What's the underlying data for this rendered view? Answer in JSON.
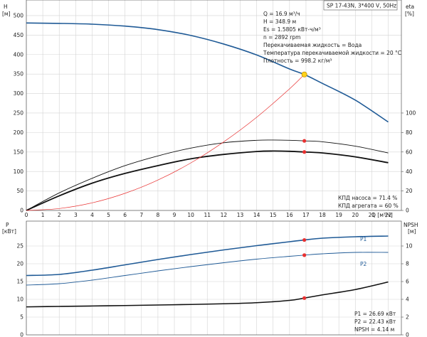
{
  "header": {
    "title": "SP 17-43N, 3*400 V, 50Hz"
  },
  "top_info": [
    "Q = 16.9 м³/ч",
    "H = 348.9 м",
    "Es = 1.5805 кВт-ч/м³",
    "n = 2892 rpm",
    "Перекачиваемая жидкость = Вода",
    "Температура перекачиваемой жидкости = 20 °C",
    "Плотность = 998.2 кг/м³"
  ],
  "top_eff_info": [
    "КПД насоса = 71.4 %",
    "КПД агрегата = 60 %"
  ],
  "bottom_info": [
    "P1 = 26.69 кВт",
    "P2 = 22.43 кВт",
    "NPSH = 4.14 м"
  ],
  "colors": {
    "blue": "#1f5a96",
    "black": "#111111",
    "red": "#e83030",
    "grid": "#d4d4d4",
    "marker": "#ffd21a"
  },
  "chart_data": [
    {
      "type": "line",
      "title": "",
      "x_ticks": [
        "0",
        "1",
        "2",
        "3",
        "4",
        "5",
        "6",
        "7",
        "8",
        "9",
        "10",
        "11",
        "12",
        "13",
        "14",
        "15",
        "16",
        "17",
        "18",
        "19",
        "20",
        "21",
        "22"
      ],
      "xlabel": "Q [м³/ч]",
      "xlim": [
        0,
        22.8
      ],
      "ylabel_left": "H",
      "ylabel_left_unit": "[м]",
      "ylim_left": [
        0,
        540
      ],
      "y_ticks_left": [
        "0",
        "50",
        "100",
        "150",
        "200",
        "250",
        "300",
        "350",
        "400",
        "450",
        "500"
      ],
      "ylabel_right": "eta",
      "ylabel_right_unit": "[%]",
      "ylim_right": [
        0,
        216
      ],
      "y_ticks_right": [
        "0",
        "20",
        "40",
        "60",
        "80",
        "100"
      ],
      "series": [
        {
          "key": "H",
          "axis": "left",
          "color": "blue",
          "width": 1.6,
          "x": [
            0,
            2,
            4,
            6,
            8,
            10,
            12,
            14,
            16,
            16.9,
            18,
            20,
            22
          ],
          "y": [
            481,
            480,
            478,
            473,
            464,
            449,
            427,
            399,
            363,
            348.9,
            326,
            283,
            227
          ]
        },
        {
          "key": "eta_unit",
          "axis": "right",
          "color": "black",
          "width": 1.8,
          "x": [
            0,
            2,
            4,
            6,
            8,
            10,
            12,
            14,
            15,
            16,
            16.9,
            18,
            20,
            22
          ],
          "y": [
            0,
            15,
            28,
            38,
            46,
            53,
            57.5,
            60.5,
            61,
            60.7,
            60,
            59,
            55,
            49
          ]
        },
        {
          "key": "eta_pump",
          "axis": "right",
          "color": "black",
          "width": 0.9,
          "x": [
            0,
            2,
            4,
            6,
            8,
            10,
            12,
            14,
            15,
            16,
            16.9,
            18,
            20,
            22
          ],
          "y": [
            0,
            18,
            33,
            46,
            56,
            64,
            69.5,
            72,
            72.3,
            72,
            71.4,
            70.5,
            66,
            59
          ]
        },
        {
          "key": "system",
          "axis": "left",
          "color": "red",
          "width": 0.7,
          "x": [
            0,
            2,
            4,
            6,
            8,
            10,
            12,
            14,
            16,
            16.9
          ],
          "y": [
            0,
            4.9,
            19.5,
            44,
            78,
            122,
            176,
            239,
            312,
            348.9
          ]
        }
      ],
      "duty_point": {
        "x": 16.9,
        "y": 348.9
      },
      "red_points": [
        {
          "x": 16.9,
          "y": 71.4,
          "axis": "right"
        },
        {
          "x": 16.9,
          "y": 60,
          "axis": "right"
        }
      ]
    },
    {
      "type": "line",
      "title": "",
      "x_ticks": [
        "0",
        "1",
        "2",
        "3",
        "4",
        "5",
        "6",
        "7",
        "8",
        "9",
        "10",
        "11",
        "12",
        "13",
        "14",
        "15",
        "16",
        "17",
        "18",
        "19",
        "20",
        "21",
        "22"
      ],
      "xlim": [
        0,
        22.8
      ],
      "ylabel_left": "P",
      "ylabel_left_unit": "[кВт]",
      "ylim_left": [
        0,
        32
      ],
      "y_ticks_left": [
        "0",
        "5",
        "10",
        "15",
        "20",
        "25"
      ],
      "ylabel_right": "NPSH",
      "ylabel_right_unit": "[м]",
      "ylim_right": [
        0,
        12.8
      ],
      "y_ticks_right": [
        "0",
        "2",
        "4",
        "6",
        "8",
        "10"
      ],
      "series": [
        {
          "key": "P1",
          "name": "P1",
          "axis": "left",
          "color": "blue",
          "width": 1.6,
          "x": [
            0,
            2,
            4,
            6,
            8,
            10,
            12,
            14,
            16,
            16.9,
            18,
            20,
            22
          ],
          "y": [
            16.7,
            17,
            18.2,
            19.7,
            21.2,
            22.6,
            23.9,
            25.1,
            26.2,
            26.69,
            27.2,
            27.6,
            27.8
          ]
        },
        {
          "key": "P2",
          "name": "P2",
          "axis": "left",
          "color": "blue",
          "width": 0.9,
          "x": [
            0,
            2,
            4,
            6,
            8,
            10,
            12,
            14,
            16,
            16.9,
            18,
            20,
            22
          ],
          "y": [
            14,
            14.4,
            15.4,
            16.7,
            18,
            19.2,
            20.3,
            21.3,
            22.1,
            22.43,
            22.8,
            23.2,
            23.2
          ]
        },
        {
          "key": "NPSH",
          "axis": "right",
          "color": "black",
          "width": 1.6,
          "x": [
            0,
            2,
            4,
            6,
            8,
            10,
            12,
            14,
            16,
            16.9,
            18,
            20,
            22
          ],
          "y": [
            3.15,
            3.2,
            3.25,
            3.3,
            3.36,
            3.42,
            3.5,
            3.62,
            3.88,
            4.14,
            4.5,
            5.1,
            5.95
          ]
        }
      ],
      "red_points": [
        {
          "x": 16.9,
          "y": 26.69,
          "axis": "left"
        },
        {
          "x": 16.9,
          "y": 22.43,
          "axis": "left"
        },
        {
          "x": 16.9,
          "y": 4.14,
          "axis": "right"
        }
      ]
    }
  ]
}
